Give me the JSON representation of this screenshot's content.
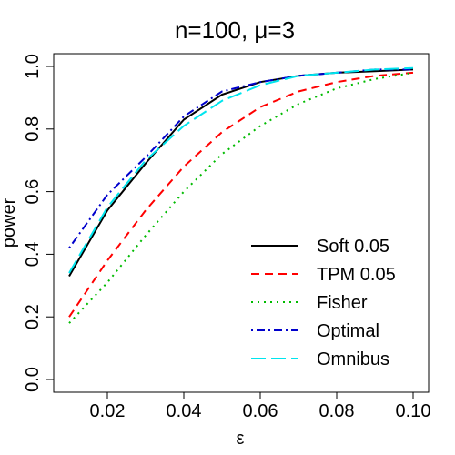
{
  "chart_data": {
    "type": "line",
    "title": "n=100, μ=3",
    "xlabel": "ε",
    "ylabel": "power",
    "xlim": [
      0.01,
      0.1
    ],
    "ylim": [
      0.0,
      1.0
    ],
    "xticks": [
      0.02,
      0.04,
      0.06,
      0.08,
      0.1
    ],
    "xtick_labels": [
      "0.02",
      "0.04",
      "0.06",
      "0.08",
      "0.10"
    ],
    "yticks": [
      0.0,
      0.2,
      0.4,
      0.6,
      0.8,
      1.0
    ],
    "ytick_labels": [
      "0.0",
      "0.2",
      "0.4",
      "0.6",
      "0.8",
      "1.0"
    ],
    "grid": false,
    "legend_position": "bottom-right",
    "x": [
      0.01,
      0.02,
      0.03,
      0.04,
      0.05,
      0.06,
      0.07,
      0.08,
      0.09,
      0.1
    ],
    "series": [
      {
        "name": "Soft 0.05",
        "color": "#000000",
        "dash": "solid",
        "values": [
          0.33,
          0.54,
          0.69,
          0.83,
          0.91,
          0.95,
          0.97,
          0.98,
          0.985,
          0.99
        ]
      },
      {
        "name": "TPM 0.05",
        "color": "#ff0000",
        "dash": "dashed",
        "values": [
          0.2,
          0.38,
          0.54,
          0.68,
          0.79,
          0.87,
          0.92,
          0.95,
          0.97,
          0.98
        ]
      },
      {
        "name": "Fisher",
        "color": "#00bb00",
        "dash": "dotted",
        "values": [
          0.18,
          0.31,
          0.46,
          0.6,
          0.72,
          0.81,
          0.88,
          0.93,
          0.96,
          0.98
        ]
      },
      {
        "name": "Optimal",
        "color": "#0000cc",
        "dash": "dotdash",
        "values": [
          0.42,
          0.59,
          0.71,
          0.84,
          0.92,
          0.95,
          0.97,
          0.98,
          0.99,
          0.99
        ]
      },
      {
        "name": "Omnibus",
        "color": "#00e5ee",
        "dash": "longdash",
        "values": [
          0.34,
          0.55,
          0.7,
          0.81,
          0.89,
          0.94,
          0.97,
          0.98,
          0.99,
          0.995
        ]
      }
    ]
  }
}
